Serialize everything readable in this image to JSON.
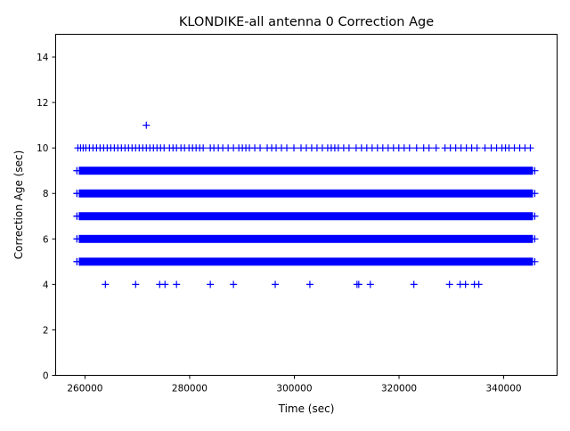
{
  "chart_data": {
    "type": "scatter",
    "title": "KLONDIKE-all antenna 0 Correction Age",
    "xlabel": "Time (sec)",
    "ylabel": "Correction Age (sec)",
    "xlim": [
      254400,
      350200
    ],
    "ylim": [
      0,
      15
    ],
    "xticks": [
      260000,
      280000,
      300000,
      320000,
      340000
    ],
    "xtick_labels": [
      "260000",
      "280000",
      "300000",
      "320000",
      "340000"
    ],
    "yticks": [
      0,
      2,
      4,
      6,
      8,
      10,
      12,
      14
    ],
    "ytick_labels": [
      "0",
      "2",
      "4",
      "6",
      "8",
      "10",
      "12",
      "14"
    ],
    "grid": false,
    "marker": "+",
    "color": "#0000ff",
    "continuous_bands": {
      "y_values": [
        5,
        6,
        7,
        8,
        9
      ],
      "x_range": [
        258470,
        345940
      ]
    },
    "points": [
      {
        "y": 4,
        "x": [
          263900,
          269680,
          274270,
          275290,
          277490,
          283950,
          288370,
          296350,
          302970,
          311970,
          312310,
          314520,
          322840,
          329640,
          331680,
          332700,
          334400,
          335250
        ]
      },
      {
        "y": 10,
        "x": [
          258640,
          259150,
          259660,
          260170,
          260850,
          261530,
          262210,
          262890,
          263570,
          264250,
          264930,
          265610,
          266280,
          266960,
          267640,
          268320,
          269000,
          269680,
          270360,
          271040,
          271720,
          272400,
          273080,
          273760,
          274440,
          275120,
          276140,
          276820,
          277490,
          278340,
          279020,
          279870,
          280550,
          281230,
          281910,
          282590,
          283950,
          284630,
          285480,
          286330,
          287350,
          288370,
          289390,
          290070,
          290740,
          291420,
          292440,
          293460,
          294820,
          295670,
          296520,
          297540,
          298560,
          299920,
          301280,
          302290,
          303310,
          304330,
          305350,
          306370,
          307050,
          307730,
          308410,
          309430,
          310450,
          311810,
          312830,
          313840,
          314860,
          315880,
          316900,
          317920,
          318940,
          319960,
          320980,
          322000,
          323360,
          324710,
          325730,
          327090,
          328790,
          329810,
          330830,
          331850,
          332870,
          333880,
          334900,
          336430,
          337620,
          338640,
          339660,
          340340,
          341020,
          342040,
          343060,
          344070,
          345090
        ]
      },
      {
        "y": 11,
        "x": [
          271720
        ]
      }
    ]
  }
}
